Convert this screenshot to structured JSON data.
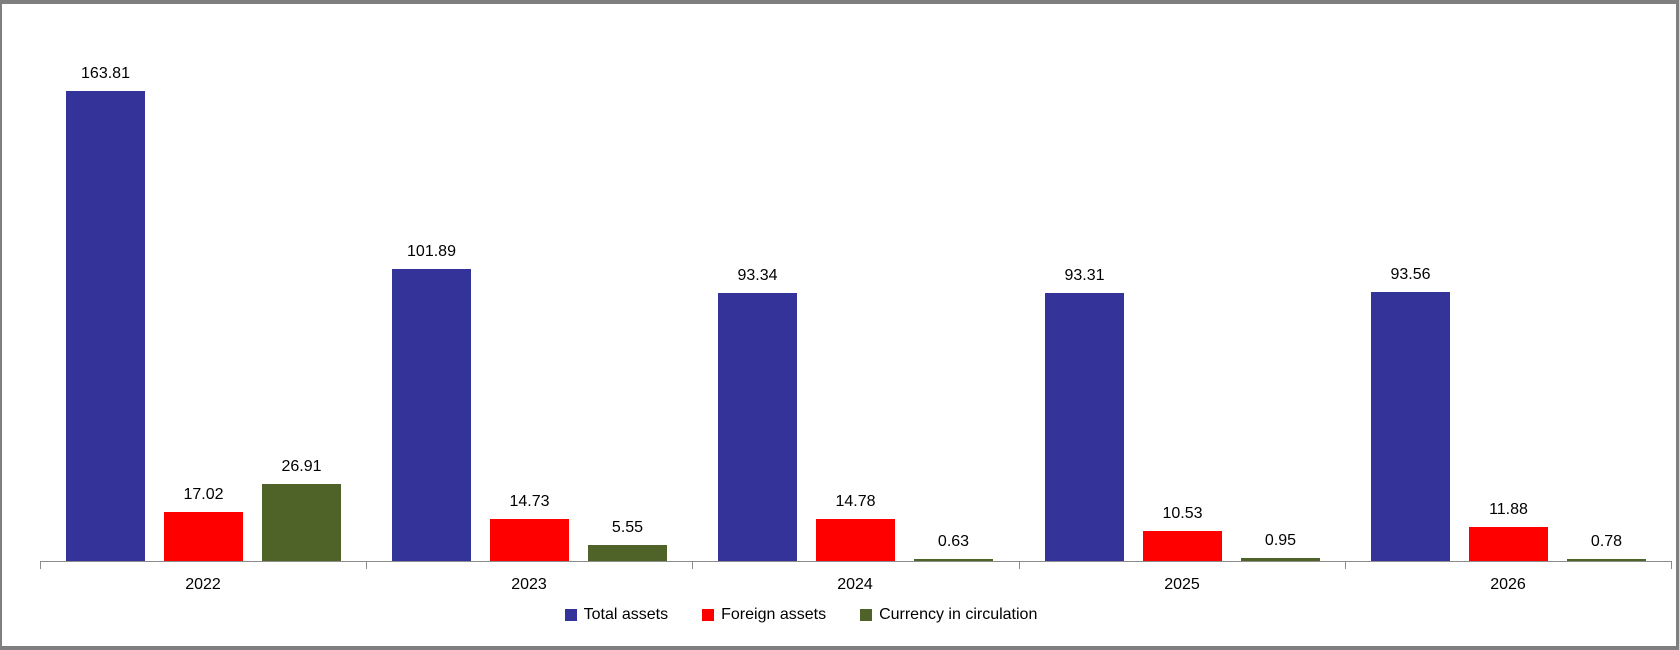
{
  "chart_data": {
    "type": "bar",
    "categories": [
      "2022",
      "2023",
      "2024",
      "2025",
      "2026"
    ],
    "series": [
      {
        "name": "Total assets",
        "color": "#333399",
        "values": [
          163.81,
          101.89,
          93.34,
          93.31,
          93.56
        ]
      },
      {
        "name": "Foreign assets",
        "color": "#ff0000",
        "values": [
          17.02,
          14.73,
          14.78,
          10.53,
          11.88
        ]
      },
      {
        "name": "Currency in circulation",
        "color": "#4f6228",
        "values": [
          26.91,
          5.55,
          0.63,
          0.95,
          0.78
        ]
      }
    ],
    "title": "",
    "xlabel": "",
    "ylabel": "",
    "ylim": [
      0,
      195
    ],
    "grid": false,
    "y_axis_visible": false,
    "data_labels": true,
    "data_label_format": "0.00",
    "legend_position": "bottom",
    "axis_color": "#8c8c8c",
    "frame_color": "#7f7f7f",
    "background_color": "#ffffff"
  }
}
